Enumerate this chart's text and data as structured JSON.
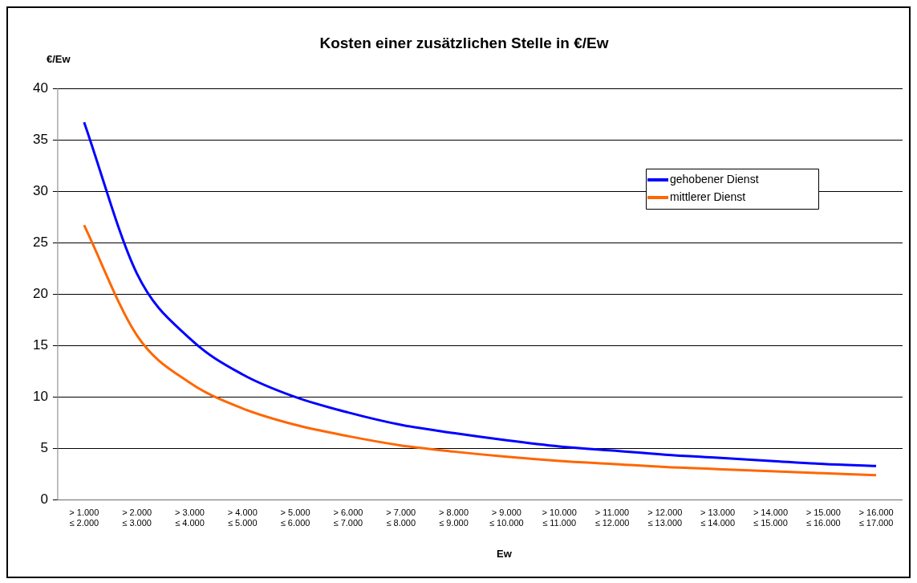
{
  "chart_data": {
    "type": "line",
    "title": "Kosten einer zusätzlichen Stelle in €/Ew",
    "xlabel": "Ew",
    "ylabel": "€/Ew",
    "categories": [
      "> 1.000\n≤ 2.000",
      "> 2.000\n≤ 3.000",
      "> 3.000\n≤ 4.000",
      "> 4.000\n≤ 5.000",
      "> 5.000\n≤ 6.000",
      "> 6.000\n≤ 7.000",
      "> 7.000\n≤ 8.000",
      "> 8.000\n≤ 9.000",
      "> 9.000\n≤ 10.000",
      "> 10.000\n≤ 11.000",
      "> 11.000\n≤ 12.000",
      "> 12.000\n≤ 13.000",
      "> 13.000\n≤ 14.000",
      "> 14.000\n≤ 15.000",
      "> 15.000\n≤ 16.000",
      "> 16.000\n≤ 17.000"
    ],
    "series": [
      {
        "name": "gehobener Dienst",
        "color": "#0000ff",
        "values": [
          36.7,
          22,
          15.7,
          12.2,
          10,
          8.5,
          7.3,
          6.5,
          5.8,
          5.2,
          4.8,
          4.4,
          4.1,
          3.8,
          3.5,
          3.3
        ]
      },
      {
        "name": "mittlerer Dienst",
        "color": "#ff6600",
        "values": [
          26.7,
          16,
          11.4,
          8.9,
          7.3,
          6.2,
          5.3,
          4.7,
          4.2,
          3.8,
          3.5,
          3.2,
          3,
          2.8,
          2.6,
          2.4
        ]
      }
    ],
    "ylim": [
      0,
      40
    ],
    "yticks": [
      0,
      5,
      10,
      15,
      20,
      25,
      30,
      35,
      40
    ],
    "grid": "y",
    "legend": "top right",
    "marker": "none",
    "line_style": "solid"
  }
}
